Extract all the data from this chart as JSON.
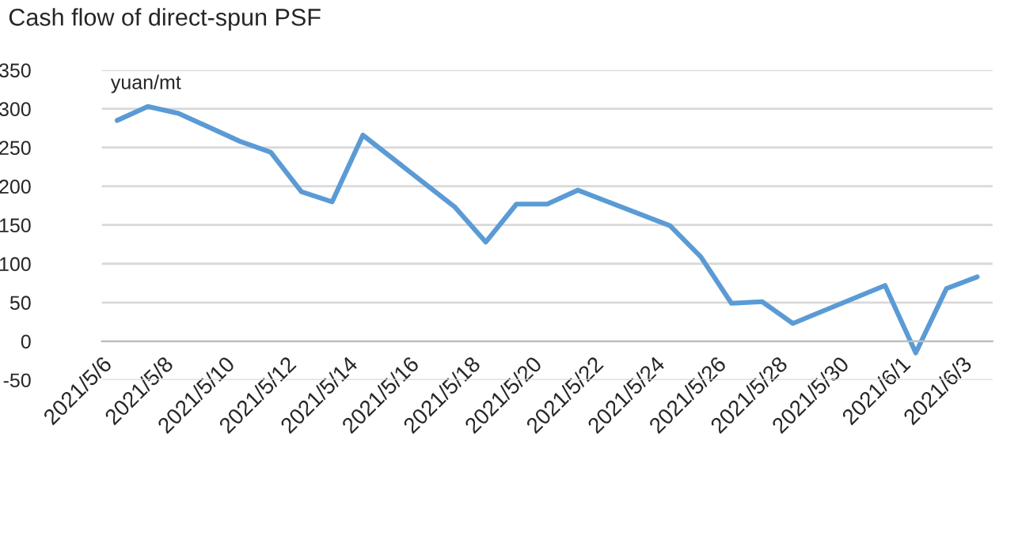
{
  "chart_data": {
    "type": "line",
    "title": "Cash flow of direct-spun PSF",
    "ylabel": "yuan/mt",
    "x": [
      "2021-05-06",
      "2021-05-07",
      "2021-05-08",
      "2021-05-10",
      "2021-05-11",
      "2021-05-12",
      "2021-05-13",
      "2021-05-14",
      "2021-05-17",
      "2021-05-18",
      "2021-05-19",
      "2021-05-20",
      "2021-05-21",
      "2021-05-24",
      "2021-05-25",
      "2021-05-26",
      "2021-05-27",
      "2021-05-28",
      "2021-05-31",
      "2021-06-01",
      "2021-06-02",
      "2021-06-03"
    ],
    "series": [
      {
        "color": "#5b9bd5",
        "values": [
          285,
          303,
          294,
          258,
          244,
          193,
          180,
          266,
          173,
          128,
          177,
          177,
          195,
          149,
          109,
          49,
          51,
          23,
          72,
          -15,
          68,
          83
        ]
      }
    ],
    "xlim": [
      "2021-05-05T12:00",
      "2021-06-03T12:00"
    ],
    "xticks": [
      {
        "value": "2021-05-05T12:00",
        "label": "2021/5/6"
      },
      {
        "value": "2021-05-07T12:00",
        "label": "2021/5/8"
      },
      {
        "value": "2021-05-09T12:00",
        "label": "2021/5/10"
      },
      {
        "value": "2021-05-11T12:00",
        "label": "2021/5/12"
      },
      {
        "value": "2021-05-13T12:00",
        "label": "2021/5/14"
      },
      {
        "value": "2021-05-15T12:00",
        "label": "2021/5/16"
      },
      {
        "value": "2021-05-17T12:00",
        "label": "2021/5/18"
      },
      {
        "value": "2021-05-19T12:00",
        "label": "2021/5/20"
      },
      {
        "value": "2021-05-21T12:00",
        "label": "2021/5/22"
      },
      {
        "value": "2021-05-23T12:00",
        "label": "2021/5/24"
      },
      {
        "value": "2021-05-25T12:00",
        "label": "2021/5/26"
      },
      {
        "value": "2021-05-27T12:00",
        "label": "2021/5/28"
      },
      {
        "value": "2021-05-29T12:00",
        "label": "2021/5/30"
      },
      {
        "value": "2021-05-31T12:00",
        "label": "2021/6/1"
      },
      {
        "value": "2021-06-02T12:00",
        "label": "2021/6/3"
      }
    ],
    "ylim": [
      -50,
      350
    ],
    "yticks": [
      -50,
      0,
      50,
      100,
      150,
      200,
      250,
      300,
      350
    ],
    "grid": "y",
    "marker": "none",
    "line_style": "solid",
    "legend": false
  }
}
